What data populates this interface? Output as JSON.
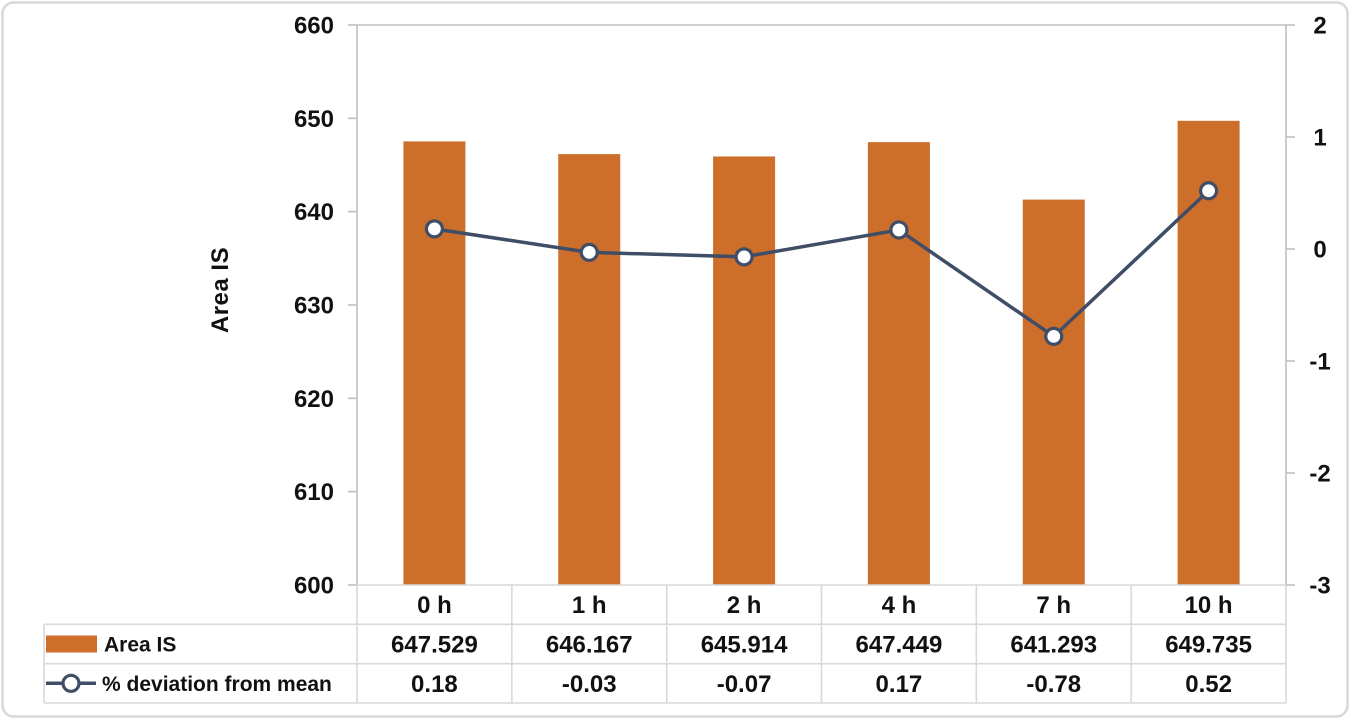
{
  "chart_data": {
    "type": "bar+line combo",
    "categories": [
      "0 h",
      "1 h",
      "2 h",
      "4 h",
      "7 h",
      "10 h"
    ],
    "series": [
      {
        "name": "Area IS",
        "type": "bar",
        "axis": "left",
        "values": [
          647.529,
          646.167,
          645.914,
          647.449,
          641.293,
          649.735
        ],
        "color": "#CE6E2B"
      },
      {
        "name": "% deviation from mean",
        "type": "line",
        "axis": "right",
        "values": [
          0.18,
          -0.03,
          -0.07,
          0.17,
          -0.78,
          0.52
        ],
        "color": "#3F4D66",
        "marker": "open-circle",
        "marker_fill": "#FFFFFF"
      }
    ],
    "title": "",
    "xlabel": "",
    "ylabel_left": "Area IS",
    "ylabel_right": "",
    "left_axis": {
      "min": 600,
      "max": 660,
      "step": 10,
      "ticks": [
        "660",
        "650",
        "640",
        "630",
        "620",
        "610",
        "600"
      ]
    },
    "right_axis": {
      "min": -3,
      "max": 2,
      "step": 1,
      "ticks": [
        "2",
        "1",
        "0",
        "-1",
        "-2",
        "-3"
      ]
    },
    "grid": false,
    "legend_position": "data-table-left",
    "table": {
      "row_labels": [
        "Area IS",
        "% deviation from mean"
      ],
      "rows": [
        [
          "647.529",
          "646.167",
          "645.914",
          "647.449",
          "641.293",
          "649.735"
        ],
        [
          "0.18",
          "-0.03",
          "-0.07",
          "0.17",
          "-0.78",
          "0.52"
        ]
      ]
    }
  },
  "colors": {
    "bar_fill": "#CE6E2B",
    "line_stroke": "#3F4D66",
    "marker_fill": "#FFFFFF",
    "axis_line": "#BFBFBF",
    "table_border": "#D9D9D9",
    "outer_border": "#D8D8D8",
    "text": "#111111",
    "background": "#FFFFFF"
  }
}
